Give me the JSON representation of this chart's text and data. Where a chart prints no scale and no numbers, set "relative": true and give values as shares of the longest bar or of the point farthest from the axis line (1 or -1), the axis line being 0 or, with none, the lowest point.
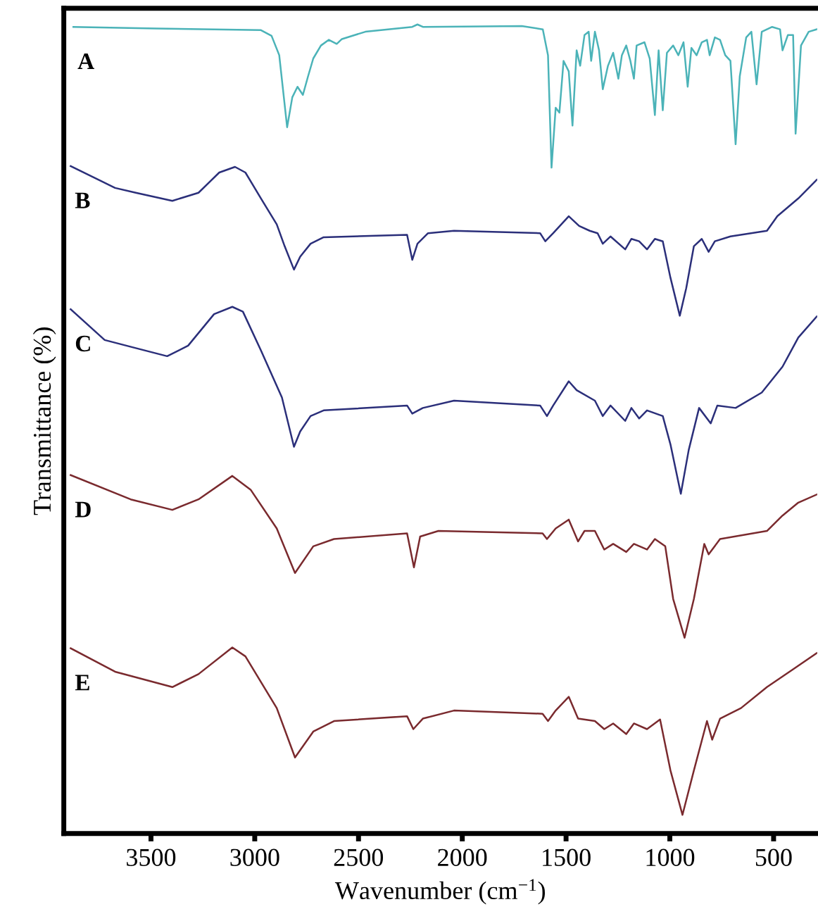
{
  "chart_data": {
    "type": "line",
    "xlabel": "Wavenumber (cm$^{−1}$)",
    "ylabel": "Transmittance (%)",
    "relative": true,
    "xlim": [
      3920,
      290
    ],
    "xticks": [
      3500,
      3000,
      2500,
      2000,
      1500,
      1000,
      500
    ],
    "series": [
      {
        "name": "A",
        "color": "#4bb3b8",
        "x": [
          3874,
          3472,
          2970,
          2919,
          2882,
          2844,
          2819,
          2794,
          2768,
          2743,
          2718,
          2681,
          2643,
          2605,
          2580,
          2467,
          2241,
          2216,
          2190,
          1713,
          1612,
          1587,
          1570,
          1550,
          1532,
          1512,
          1487,
          1469,
          1449,
          1432,
          1411,
          1391,
          1379,
          1361,
          1341,
          1323,
          1298,
          1273,
          1248,
          1231,
          1210,
          1190,
          1173,
          1160,
          1122,
          1097,
          1072,
          1054,
          1034,
          1014,
          984,
          959,
          934,
          914,
          896,
          871,
          846,
          821,
          808,
          783,
          758,
          733,
          708,
          683,
          663,
          632,
          607,
          582,
          557,
          507,
          469,
          457,
          431,
          406,
          394,
          368,
          331,
          292
        ],
        "values": [
          0.997,
          0.995,
          0.993,
          0.986,
          0.962,
          0.873,
          0.91,
          0.923,
          0.913,
          0.936,
          0.958,
          0.974,
          0.981,
          0.976,
          0.982,
          0.991,
          0.997,
          1.0,
          0.997,
          0.998,
          0.994,
          0.962,
          0.823,
          0.897,
          0.891,
          0.955,
          0.942,
          0.875,
          0.968,
          0.949,
          0.987,
          0.991,
          0.955,
          0.991,
          0.968,
          0.92,
          0.949,
          0.965,
          0.933,
          0.962,
          0.974,
          0.955,
          0.933,
          0.974,
          0.978,
          0.958,
          0.888,
          0.968,
          0.894,
          0.965,
          0.974,
          0.962,
          0.978,
          0.923,
          0.971,
          0.962,
          0.978,
          0.981,
          0.962,
          0.984,
          0.981,
          0.962,
          0.955,
          0.852,
          0.936,
          0.984,
          0.991,
          0.926,
          0.991,
          0.997,
          0.994,
          0.968,
          0.987,
          0.987,
          0.865,
          0.974,
          0.991,
          0.994
        ]
      },
      {
        "name": "B",
        "color": "#2b2f7a",
        "x": [
          3887,
          3673,
          3573,
          3397,
          3271,
          3171,
          3095,
          3045,
          2970,
          2894,
          2856,
          2811,
          2781,
          2731,
          2668,
          2266,
          2241,
          2216,
          2165,
          2040,
          1625,
          1600,
          1562,
          1487,
          1437,
          1386,
          1348,
          1323,
          1286,
          1215,
          1185,
          1148,
          1110,
          1072,
          1034,
          997,
          952,
          921,
          884,
          846,
          813,
          783,
          708,
          532,
          482,
          381,
          292
        ],
        "values": [
          0.825,
          0.798,
          0.792,
          0.782,
          0.792,
          0.817,
          0.824,
          0.817,
          0.785,
          0.753,
          0.726,
          0.697,
          0.713,
          0.729,
          0.737,
          0.74,
          0.709,
          0.729,
          0.742,
          0.745,
          0.742,
          0.732,
          0.742,
          0.763,
          0.751,
          0.745,
          0.742,
          0.729,
          0.738,
          0.722,
          0.735,
          0.732,
          0.722,
          0.735,
          0.732,
          0.687,
          0.64,
          0.674,
          0.726,
          0.735,
          0.719,
          0.732,
          0.738,
          0.745,
          0.763,
          0.785,
          0.808
        ]
      },
      {
        "name": "C",
        "color": "#2b2f7a",
        "x": [
          3887,
          3723,
          3573,
          3422,
          3321,
          3196,
          3108,
          3057,
          2970,
          2869,
          2811,
          2781,
          2731,
          2668,
          2266,
          2241,
          2190,
          2040,
          1625,
          1592,
          1562,
          1487,
          1449,
          1361,
          1323,
          1286,
          1215,
          1185,
          1148,
          1110,
          1034,
          997,
          947,
          909,
          859,
          803,
          771,
          683,
          557,
          457,
          381,
          292
        ],
        "values": [
          0.648,
          0.61,
          0.6,
          0.59,
          0.603,
          0.642,
          0.651,
          0.645,
          0.597,
          0.539,
          0.478,
          0.497,
          0.516,
          0.523,
          0.529,
          0.519,
          0.526,
          0.535,
          0.529,
          0.516,
          0.529,
          0.559,
          0.548,
          0.535,
          0.516,
          0.529,
          0.51,
          0.526,
          0.513,
          0.523,
          0.516,
          0.481,
          0.42,
          0.474,
          0.526,
          0.507,
          0.529,
          0.526,
          0.545,
          0.577,
          0.613,
          0.639
        ]
      },
      {
        "name": "D",
        "color": "#7a2a2e",
        "x": [
          3887,
          3598,
          3397,
          3271,
          3108,
          3020,
          2894,
          2806,
          2718,
          2618,
          2266,
          2233,
          2203,
          2115,
          1613,
          1592,
          1550,
          1487,
          1442,
          1411,
          1361,
          1316,
          1273,
          1210,
          1173,
          1110,
          1072,
          1022,
          984,
          929,
          884,
          834,
          813,
          758,
          532,
          457,
          381,
          292
        ],
        "values": [
          0.443,
          0.413,
          0.4,
          0.413,
          0.442,
          0.425,
          0.377,
          0.322,
          0.355,
          0.364,
          0.371,
          0.329,
          0.367,
          0.374,
          0.371,
          0.364,
          0.377,
          0.388,
          0.361,
          0.374,
          0.374,
          0.351,
          0.358,
          0.348,
          0.358,
          0.351,
          0.364,
          0.355,
          0.29,
          0.242,
          0.29,
          0.358,
          0.345,
          0.364,
          0.374,
          0.393,
          0.409,
          0.419
        ]
      },
      {
        "name": "E",
        "color": "#7a2a2e",
        "x": [
          3887,
          3673,
          3397,
          3271,
          3108,
          3045,
          2894,
          2806,
          2718,
          2618,
          2266,
          2236,
          2190,
          2040,
          1613,
          1587,
          1550,
          1487,
          1442,
          1361,
          1316,
          1273,
          1210,
          1173,
          1110,
          1047,
          997,
          939,
          884,
          821,
          796,
          758,
          657,
          532,
          406,
          292
        ],
        "values": [
          0.229,
          0.2,
          0.181,
          0.197,
          0.23,
          0.219,
          0.155,
          0.094,
          0.126,
          0.139,
          0.145,
          0.129,
          0.142,
          0.152,
          0.148,
          0.139,
          0.152,
          0.169,
          0.142,
          0.139,
          0.129,
          0.136,
          0.123,
          0.136,
          0.129,
          0.141,
          0.078,
          0.023,
          0.078,
          0.139,
          0.116,
          0.142,
          0.155,
          0.181,
          0.203,
          0.223
        ]
      }
    ]
  }
}
